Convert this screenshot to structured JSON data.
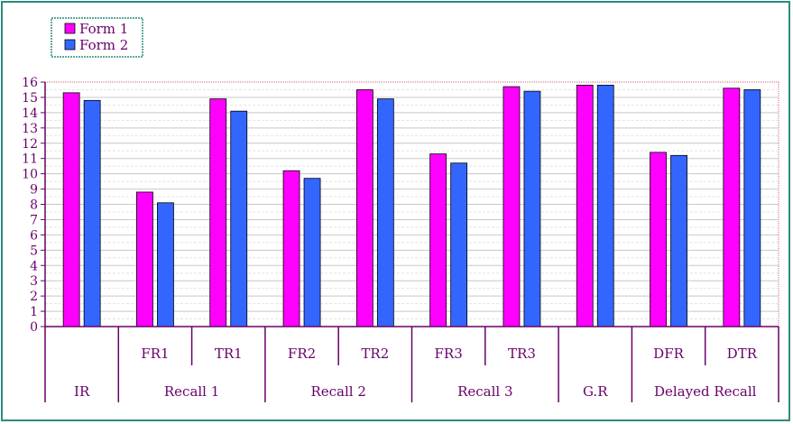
{
  "chart_data": {
    "type": "bar",
    "series": [
      {
        "name": "Form 1",
        "color": "#ff00ff",
        "values": [
          15.3,
          8.8,
          14.9,
          10.2,
          15.5,
          11.3,
          15.7,
          15.8,
          11.4,
          15.6
        ]
      },
      {
        "name": "Form 2",
        "color": "#3366ff",
        "values": [
          14.8,
          8.1,
          14.1,
          9.7,
          14.9,
          10.7,
          15.4,
          15.8,
          11.2,
          15.5
        ]
      }
    ],
    "ylim": [
      0,
      16
    ],
    "yticks": [
      0,
      1,
      2,
      3,
      4,
      5,
      6,
      7,
      8,
      9,
      10,
      11,
      12,
      13,
      14,
      15,
      16
    ],
    "grid": true,
    "legend_position": "top-left",
    "categories_level1": [
      "",
      "FR1",
      "TR1",
      "FR2",
      "TR2",
      "FR3",
      "TR3",
      "",
      "DFR",
      "DTR"
    ],
    "groups": [
      {
        "label": "IR",
        "span": 1
      },
      {
        "label": "Recall 1",
        "span": 2
      },
      {
        "label": "Recall 2",
        "span": 2
      },
      {
        "label": "Recall 3",
        "span": 2
      },
      {
        "label": "G.R",
        "span": 1
      },
      {
        "label": "Delayed Recall",
        "span": 2
      }
    ]
  },
  "colors": {
    "frame": "#2e8b7f",
    "axis": "#6a006a",
    "text": "#6a006a",
    "grid": "#c8c8c8",
    "top_grid": "#cc6677",
    "bar_outline": "#000000"
  }
}
